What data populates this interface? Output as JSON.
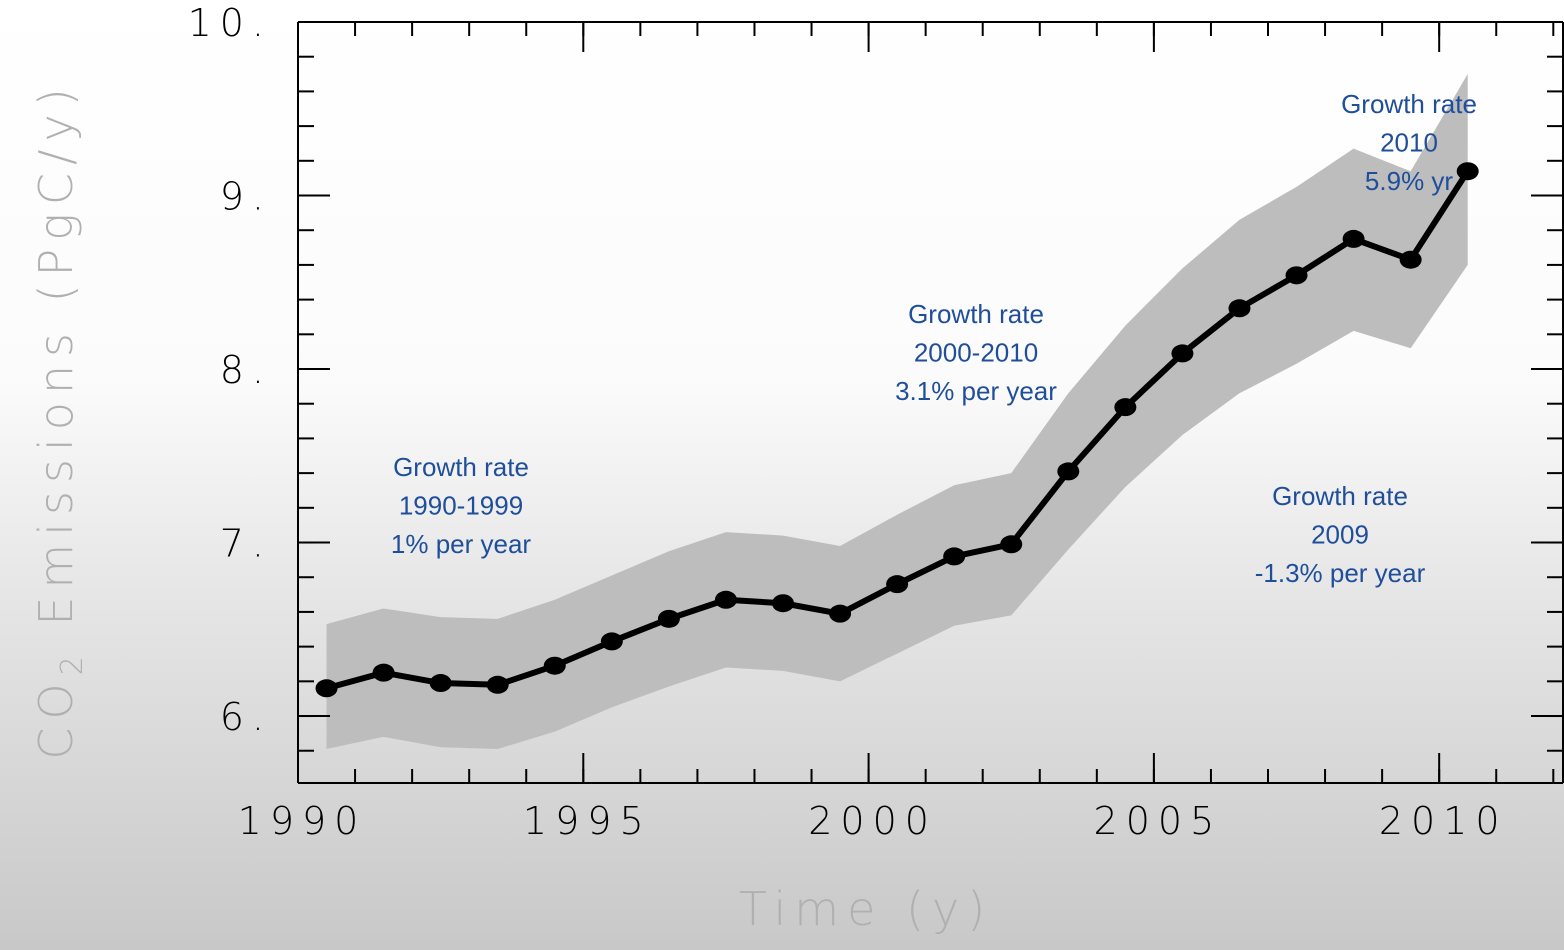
{
  "chart_data": {
    "type": "line",
    "ylabel": [
      "CO",
      "2",
      " Emissions (PgC/y)"
    ],
    "xlabel": "Time (y)",
    "x": [
      1990.5,
      1991.5,
      1992.5,
      1993.5,
      1994.5,
      1995.5,
      1996.5,
      1997.5,
      1998.5,
      1999.5,
      2000.5,
      2001.5,
      2002.5,
      2003.5,
      2004.5,
      2005.5,
      2006.5,
      2007.5,
      2008.5,
      2009.5,
      2010.5
    ],
    "series": [
      {
        "color": "#000000",
        "values": [
          6.16,
          6.25,
          6.19,
          6.18,
          6.29,
          6.43,
          6.56,
          6.67,
          6.65,
          6.59,
          6.76,
          6.92,
          6.99,
          7.41,
          7.78,
          8.09,
          8.35,
          8.54,
          8.75,
          8.63,
          9.14
        ],
        "upper": [
          6.53,
          6.62,
          6.57,
          6.56,
          6.67,
          6.81,
          6.95,
          7.06,
          7.04,
          6.98,
          7.16,
          7.33,
          7.4,
          7.86,
          8.25,
          8.58,
          8.86,
          9.05,
          9.27,
          9.14,
          9.7
        ],
        "lower": [
          5.81,
          5.88,
          5.82,
          5.81,
          5.91,
          6.05,
          6.17,
          6.28,
          6.26,
          6.2,
          6.36,
          6.52,
          6.58,
          6.96,
          7.32,
          7.62,
          7.86,
          8.03,
          8.22,
          8.12,
          8.6
        ],
        "band_color": "#bdbdbd"
      }
    ],
    "xlim": [
      1990,
      2012.17
    ],
    "ylim": [
      5.614,
      10
    ],
    "xticks": [
      1990,
      1995,
      2000,
      2005,
      2010
    ],
    "yticks": [
      {
        "value": 6,
        "label": "6."
      },
      {
        "value": 7,
        "label": "7."
      },
      {
        "value": 8,
        "label": "8."
      },
      {
        "value": 9,
        "label": "9."
      },
      {
        "value": 10,
        "label": "10."
      }
    ],
    "minor_ticks": {
      "x": 1,
      "y": 0.2
    },
    "annotations": [
      [
        "Growth rate",
        "1990-1999",
        "1% per year"
      ],
      [
        "Growth rate",
        "2000-2010",
        "3.1% per year"
      ],
      [
        "Growth rate",
        "2009",
        "-1.3% per year"
      ],
      [
        "Growth rate",
        "2010",
        "5.9% yr"
      ]
    ],
    "annotation_color": "#1f4e9a"
  }
}
